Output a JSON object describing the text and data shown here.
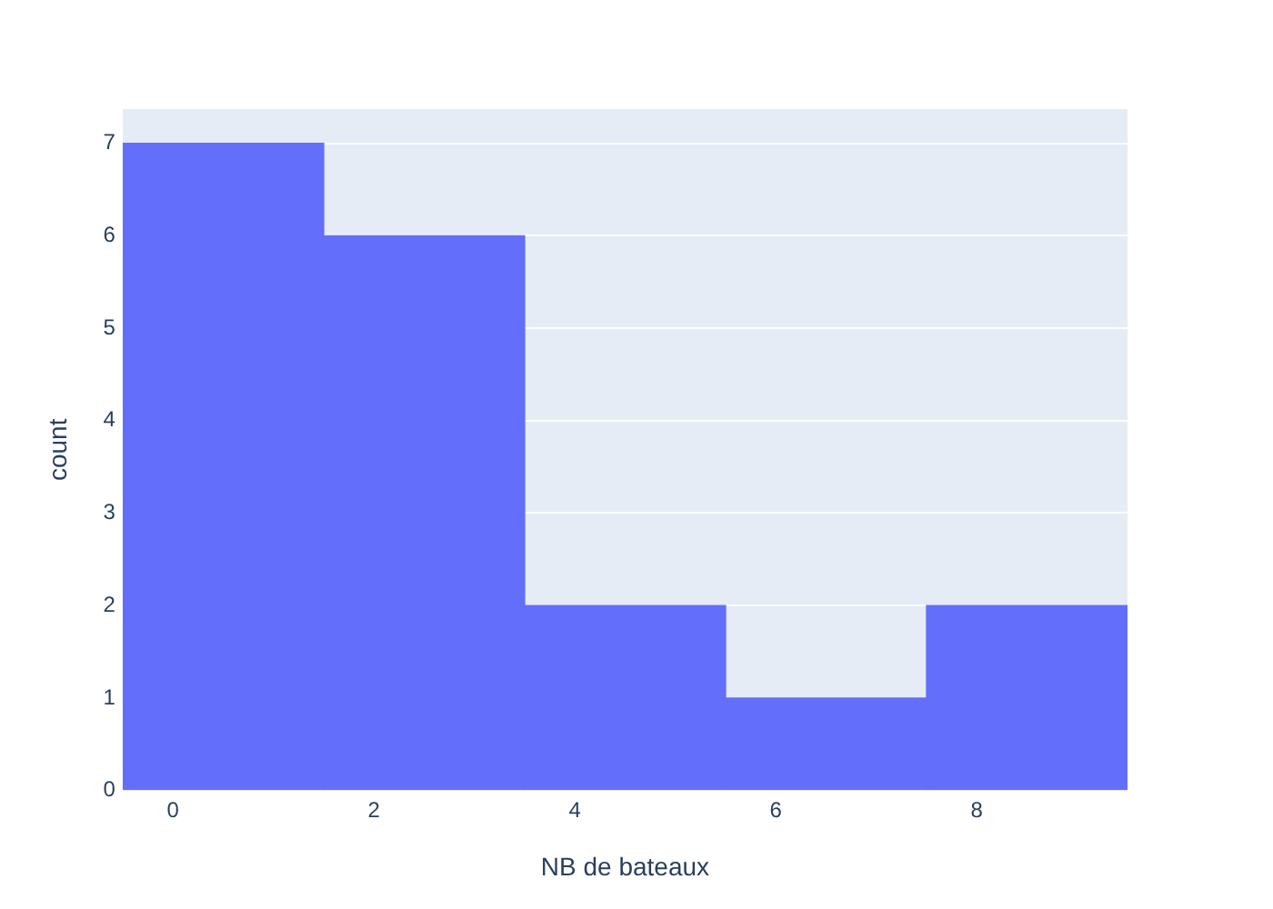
{
  "chart_data": {
    "type": "histogram",
    "xlabel": "NB de bateaux",
    "ylabel": "count",
    "bins": [
      -0.5,
      1.5,
      3.5,
      5.5,
      7.5,
      9.5
    ],
    "values": [
      7,
      6,
      2,
      1,
      2
    ],
    "color": "#636efa",
    "xlim": [
      -0.5,
      9.5
    ],
    "xticks": [
      0,
      2,
      4,
      6,
      8
    ],
    "ylim": [
      0,
      7.37
    ],
    "yticks": [
      0,
      1,
      2,
      3,
      4,
      5,
      6,
      7
    ],
    "grid": "y"
  }
}
